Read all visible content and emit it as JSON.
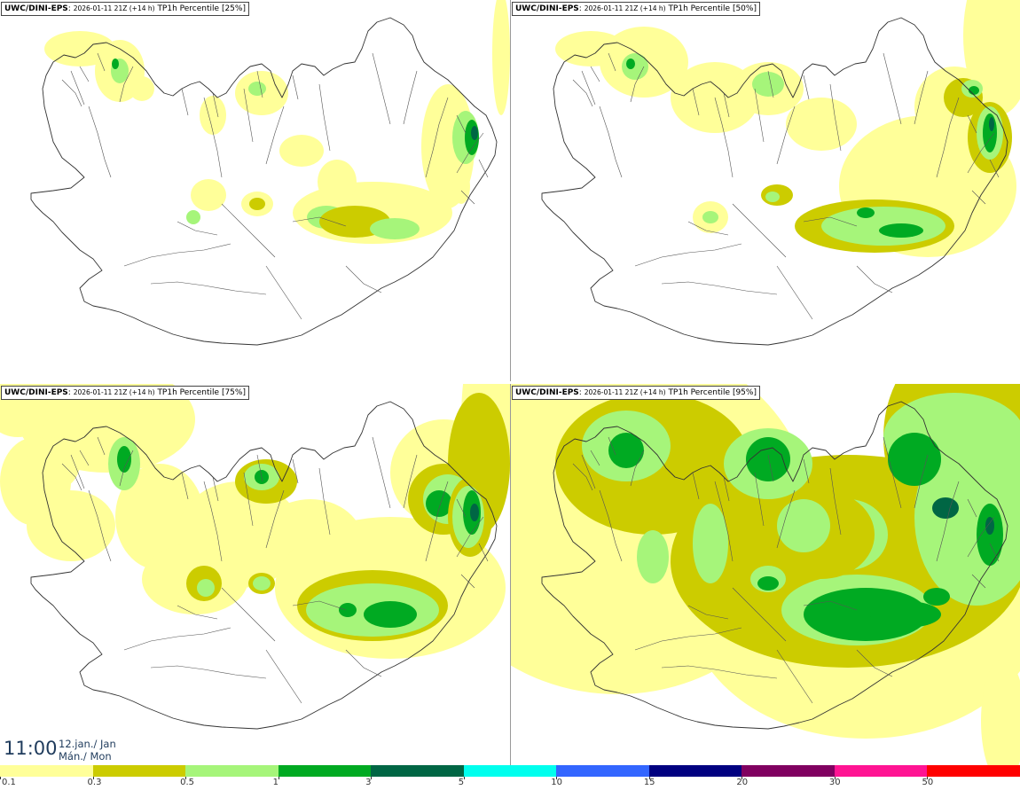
{
  "panels": [
    {
      "source": "UWC/DINI-EPS",
      "run": "2026-01-11 21Z (+14 h)",
      "product": "TP1h Percentile",
      "percentile": "[25%]"
    },
    {
      "source": "UWC/DINI-EPS",
      "run": "2026-01-11 21Z (+14 h)",
      "product": "TP1h Percentile",
      "percentile": "[50%]"
    },
    {
      "source": "UWC/DINI-EPS",
      "run": "2026-01-11 21Z (+14 h)",
      "product": "TP1h Percentile",
      "percentile": "[75%]"
    },
    {
      "source": "UWC/DINI-EPS",
      "run": "2026-01-11 21Z (+14 h)",
      "product": "TP1h Percentile",
      "percentile": "[95%]"
    }
  ],
  "valid_time": {
    "clock": "11:00",
    "date_line1": "12.jan./ Jan",
    "date_line2": "Mán./ Mon"
  },
  "legend": {
    "labels": [
      "0.1",
      "0.3",
      "0.5",
      "1",
      "3",
      "5",
      "10",
      "15",
      "20",
      "30",
      "50"
    ],
    "colors": [
      "#ffff99",
      "#cccc00",
      "#a6f57a",
      "#00aa22",
      "#006644",
      "#00ffee",
      "#3366ff",
      "#000080",
      "#800060",
      "#ff1493",
      "#ff0000"
    ]
  }
}
